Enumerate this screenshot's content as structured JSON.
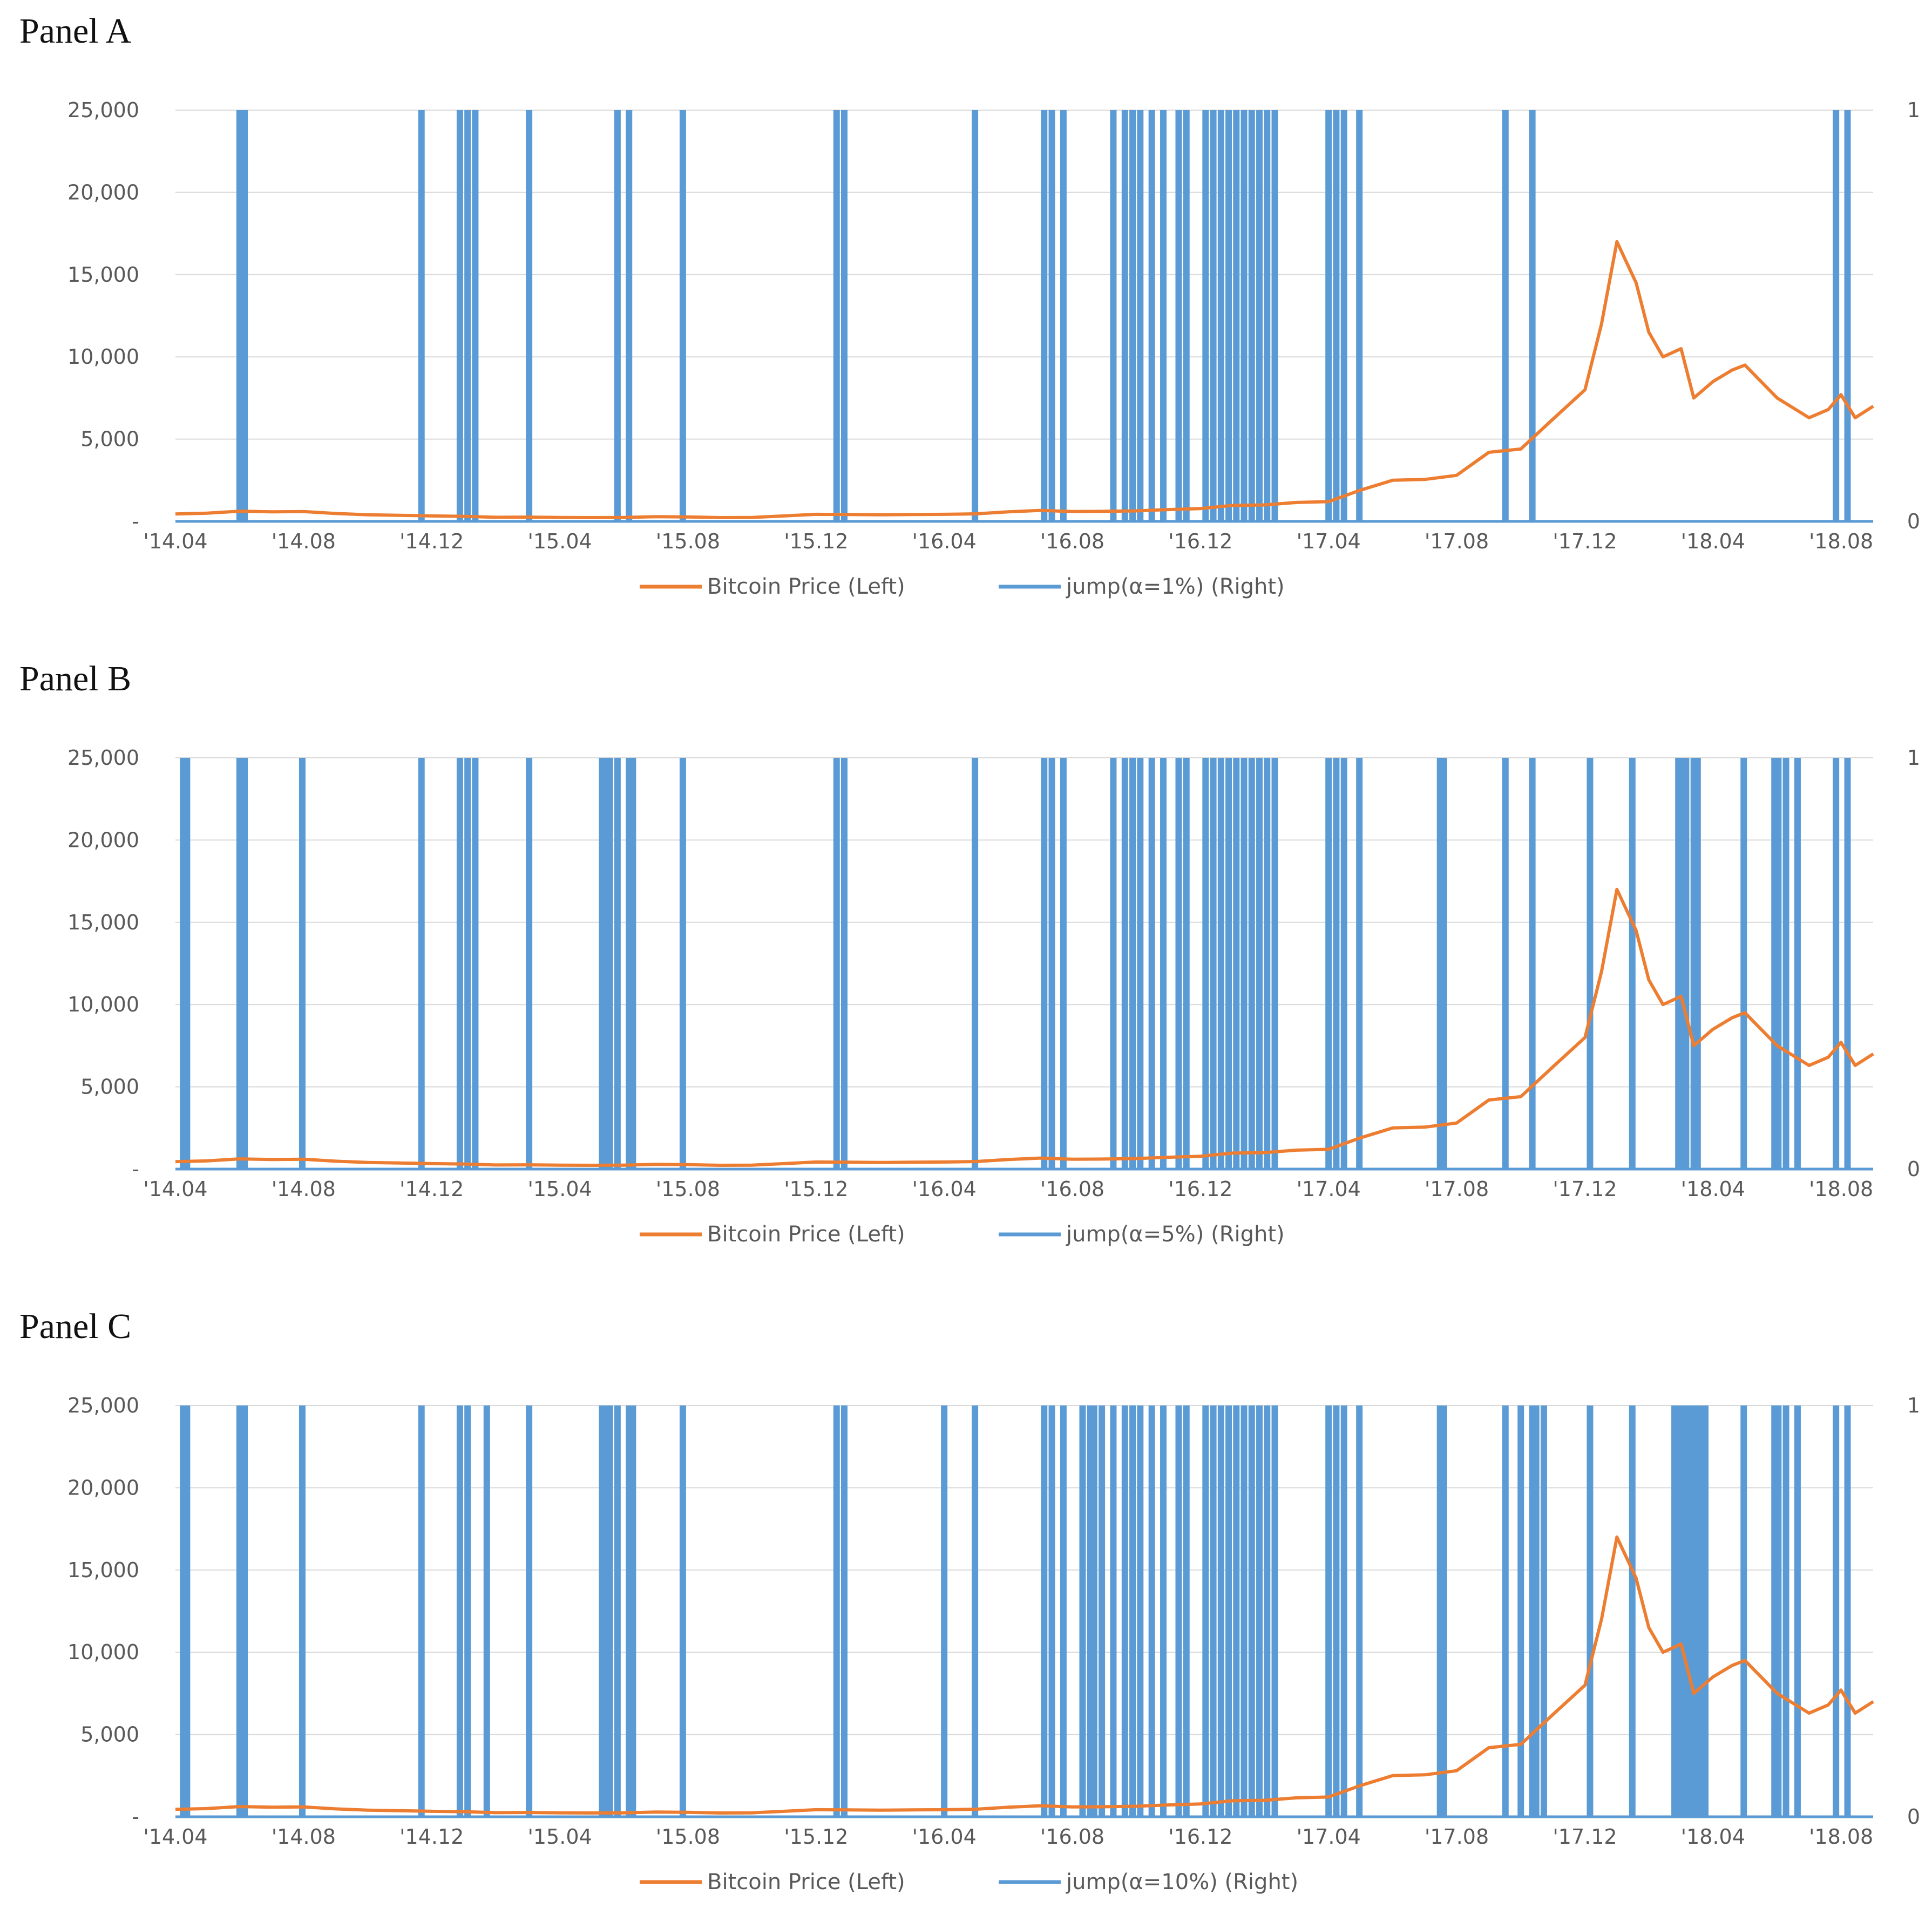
{
  "colors": {
    "price": "#ED7D31",
    "jump": "#5B9BD5",
    "grid": "#D9D9D9",
    "text": "#595959"
  },
  "chart_data": [
    {
      "panel_title": "Panel A",
      "type": "line",
      "xlim": [
        2014.25,
        2018.6667
      ],
      "x_ticks": [
        {
          "label": "'14.04",
          "value": 2014.25
        },
        {
          "label": "'14.08",
          "value": 2014.5833
        },
        {
          "label": "'14.12",
          "value": 2014.9167
        },
        {
          "label": "'15.04",
          "value": 2015.25
        },
        {
          "label": "'15.08",
          "value": 2015.5833
        },
        {
          "label": "'15.12",
          "value": 2015.9167
        },
        {
          "label": "'16.04",
          "value": 2016.25
        },
        {
          "label": "'16.08",
          "value": 2016.5833
        },
        {
          "label": "'16.12",
          "value": 2016.9167
        },
        {
          "label": "'17.04",
          "value": 2017.25
        },
        {
          "label": "'17.08",
          "value": 2017.5833
        },
        {
          "label": "'17.12",
          "value": 2017.9167
        },
        {
          "label": "'18.04",
          "value": 2018.25
        },
        {
          "label": "'18.08",
          "value": 2018.5833
        }
      ],
      "y_left_ticks": [
        {
          "label": "-",
          "value": 0
        },
        {
          "label": "5,000",
          "value": 5000
        },
        {
          "label": "10,000",
          "value": 10000
        },
        {
          "label": "15,000",
          "value": 15000
        },
        {
          "label": "20,000",
          "value": 20000
        },
        {
          "label": "25,000",
          "value": 25000
        }
      ],
      "y_right_ticks": [
        {
          "label": "0",
          "value": 0
        },
        {
          "label": "1",
          "value": 1
        }
      ],
      "ylim_left": [
        0,
        25000
      ],
      "ylim_right": [
        0,
        1
      ],
      "series": [
        {
          "name": "Bitcoin Price (Left)",
          "axis": "left",
          "x": [
            2014.25,
            2014.333,
            2014.417,
            2014.5,
            2014.583,
            2014.667,
            2014.75,
            2014.833,
            2014.917,
            2015.0,
            2015.083,
            2015.167,
            2015.25,
            2015.333,
            2015.417,
            2015.5,
            2015.583,
            2015.667,
            2015.75,
            2015.833,
            2015.917,
            2016.0,
            2016.083,
            2016.167,
            2016.25,
            2016.333,
            2016.417,
            2016.5,
            2016.583,
            2016.667,
            2016.75,
            2016.833,
            2016.917,
            2017.0,
            2017.083,
            2017.167,
            2017.25,
            2017.333,
            2017.417,
            2017.5,
            2017.583,
            2017.667,
            2017.75,
            2017.833,
            2017.917,
            2017.96,
            2018.0,
            2018.05,
            2018.083,
            2018.12,
            2018.167,
            2018.2,
            2018.25,
            2018.3,
            2018.333,
            2018.417,
            2018.5,
            2018.55,
            2018.583,
            2018.62,
            2018.667
          ],
          "y": [
            450,
            500,
            620,
            580,
            600,
            480,
            400,
            370,
            330,
            310,
            250,
            260,
            240,
            230,
            240,
            290,
            270,
            230,
            240,
            330,
            430,
            420,
            400,
            420,
            430,
            460,
            580,
            670,
            600,
            610,
            640,
            720,
            780,
            970,
            1000,
            1150,
            1200,
            1900,
            2500,
            2550,
            2800,
            4200,
            4400,
            6200,
            8000,
            12000,
            17000,
            14500,
            11500,
            10000,
            10500,
            7500,
            8500,
            9200,
            9500,
            7500,
            6300,
            6800,
            7700,
            6300,
            7000
          ]
        },
        {
          "name": "jump(α=1%) (Right)",
          "axis": "right",
          "jumps": [
            2014.417,
            2014.43,
            2014.89,
            2014.99,
            2015.01,
            2015.03,
            2015.17,
            2015.4,
            2015.43,
            2015.57,
            2015.97,
            2015.99,
            2016.33,
            2016.51,
            2016.53,
            2016.56,
            2016.69,
            2016.72,
            2016.74,
            2016.76,
            2016.79,
            2016.82,
            2016.86,
            2016.88,
            2016.93,
            2016.95,
            2016.97,
            2016.99,
            2017.01,
            2017.03,
            2017.05,
            2017.07,
            2017.09,
            2017.11,
            2017.25,
            2017.27,
            2017.29,
            2017.33,
            2017.71,
            2017.78,
            2018.57,
            2018.6
          ]
        }
      ],
      "legend": [
        "Bitcoin Price (Left)",
        "jump(α=1%) (Right)"
      ]
    },
    {
      "panel_title": "Panel B",
      "type": "line",
      "xlim": [
        2014.25,
        2018.6667
      ],
      "x_ticks": [
        {
          "label": "'14.04",
          "value": 2014.25
        },
        {
          "label": "'14.08",
          "value": 2014.5833
        },
        {
          "label": "'14.12",
          "value": 2014.9167
        },
        {
          "label": "'15.04",
          "value": 2015.25
        },
        {
          "label": "'15.08",
          "value": 2015.5833
        },
        {
          "label": "'15.12",
          "value": 2015.9167
        },
        {
          "label": "'16.04",
          "value": 2016.25
        },
        {
          "label": "'16.08",
          "value": 2016.5833
        },
        {
          "label": "'16.12",
          "value": 2016.9167
        },
        {
          "label": "'17.04",
          "value": 2017.25
        },
        {
          "label": "'17.08",
          "value": 2017.5833
        },
        {
          "label": "'17.12",
          "value": 2017.9167
        },
        {
          "label": "'18.04",
          "value": 2018.25
        },
        {
          "label": "'18.08",
          "value": 2018.5833
        }
      ],
      "y_left_ticks": [
        {
          "label": "-",
          "value": 0
        },
        {
          "label": "5,000",
          "value": 5000
        },
        {
          "label": "10,000",
          "value": 10000
        },
        {
          "label": "15,000",
          "value": 15000
        },
        {
          "label": "20,000",
          "value": 20000
        },
        {
          "label": "25,000",
          "value": 25000
        }
      ],
      "y_right_ticks": [
        {
          "label": "0",
          "value": 0
        },
        {
          "label": "1",
          "value": 1
        }
      ],
      "ylim_left": [
        0,
        25000
      ],
      "ylim_right": [
        0,
        1
      ],
      "series": [
        {
          "name": "Bitcoin Price (Left)",
          "axis": "left",
          "x": [
            2014.25,
            2014.333,
            2014.417,
            2014.5,
            2014.583,
            2014.667,
            2014.75,
            2014.833,
            2014.917,
            2015.0,
            2015.083,
            2015.167,
            2015.25,
            2015.333,
            2015.417,
            2015.5,
            2015.583,
            2015.667,
            2015.75,
            2015.833,
            2015.917,
            2016.0,
            2016.083,
            2016.167,
            2016.25,
            2016.333,
            2016.417,
            2016.5,
            2016.583,
            2016.667,
            2016.75,
            2016.833,
            2016.917,
            2017.0,
            2017.083,
            2017.167,
            2017.25,
            2017.333,
            2017.417,
            2017.5,
            2017.583,
            2017.667,
            2017.75,
            2017.833,
            2017.917,
            2017.96,
            2018.0,
            2018.05,
            2018.083,
            2018.12,
            2018.167,
            2018.2,
            2018.25,
            2018.3,
            2018.333,
            2018.417,
            2018.5,
            2018.55,
            2018.583,
            2018.62,
            2018.667
          ],
          "y": [
            450,
            500,
            620,
            580,
            600,
            480,
            400,
            370,
            330,
            310,
            250,
            260,
            240,
            230,
            240,
            290,
            270,
            230,
            240,
            330,
            430,
            420,
            400,
            420,
            430,
            460,
            580,
            670,
            600,
            610,
            640,
            720,
            780,
            970,
            1000,
            1150,
            1200,
            1900,
            2500,
            2550,
            2800,
            4200,
            4400,
            6200,
            8000,
            12000,
            17000,
            14500,
            11500,
            10000,
            10500,
            7500,
            8500,
            9200,
            9500,
            7500,
            6300,
            6800,
            7700,
            6300,
            7000
          ]
        },
        {
          "name": "jump(α=5%) (Right)",
          "axis": "right",
          "jumps": [
            2014.27,
            2014.28,
            2014.417,
            2014.43,
            2014.58,
            2014.89,
            2014.99,
            2015.01,
            2015.03,
            2015.17,
            2015.36,
            2015.37,
            2015.38,
            2015.4,
            2015.43,
            2015.44,
            2015.57,
            2015.97,
            2015.99,
            2016.33,
            2016.51,
            2016.53,
            2016.56,
            2016.69,
            2016.72,
            2016.74,
            2016.76,
            2016.79,
            2016.82,
            2016.86,
            2016.88,
            2016.93,
            2016.95,
            2016.97,
            2016.99,
            2017.01,
            2017.03,
            2017.05,
            2017.07,
            2017.09,
            2017.11,
            2017.25,
            2017.27,
            2017.29,
            2017.33,
            2017.54,
            2017.55,
            2017.71,
            2017.78,
            2017.93,
            2018.04,
            2018.16,
            2018.17,
            2018.18,
            2018.2,
            2018.21,
            2018.33,
            2018.41,
            2018.42,
            2018.44,
            2018.47,
            2018.57,
            2018.6
          ]
        }
      ],
      "legend": [
        "Bitcoin Price (Left)",
        "jump(α=5%) (Right)"
      ]
    },
    {
      "panel_title": "Panel C",
      "type": "line",
      "xlim": [
        2014.25,
        2018.6667
      ],
      "x_ticks": [
        {
          "label": "'14.04",
          "value": 2014.25
        },
        {
          "label": "'14.08",
          "value": 2014.5833
        },
        {
          "label": "'14.12",
          "value": 2014.9167
        },
        {
          "label": "'15.04",
          "value": 2015.25
        },
        {
          "label": "'15.08",
          "value": 2015.5833
        },
        {
          "label": "'15.12",
          "value": 2015.9167
        },
        {
          "label": "'16.04",
          "value": 2016.25
        },
        {
          "label": "'16.08",
          "value": 2016.5833
        },
        {
          "label": "'16.12",
          "value": 2016.9167
        },
        {
          "label": "'17.04",
          "value": 2017.25
        },
        {
          "label": "'17.08",
          "value": 2017.5833
        },
        {
          "label": "'17.12",
          "value": 2017.9167
        },
        {
          "label": "'18.04",
          "value": 2018.25
        },
        {
          "label": "'18.08",
          "value": 2018.5833
        }
      ],
      "y_left_ticks": [
        {
          "label": "-",
          "value": 0
        },
        {
          "label": "5,000",
          "value": 5000
        },
        {
          "label": "10,000",
          "value": 10000
        },
        {
          "label": "15,000",
          "value": 15000
        },
        {
          "label": "20,000",
          "value": 20000
        },
        {
          "label": "25,000",
          "value": 25000
        }
      ],
      "y_right_ticks": [
        {
          "label": "0",
          "value": 0
        },
        {
          "label": "1",
          "value": 1
        }
      ],
      "ylim_left": [
        0,
        25000
      ],
      "ylim_right": [
        0,
        1
      ],
      "series": [
        {
          "name": "Bitcoin Price (Left)",
          "axis": "left",
          "x": [
            2014.25,
            2014.333,
            2014.417,
            2014.5,
            2014.583,
            2014.667,
            2014.75,
            2014.833,
            2014.917,
            2015.0,
            2015.083,
            2015.167,
            2015.25,
            2015.333,
            2015.417,
            2015.5,
            2015.583,
            2015.667,
            2015.75,
            2015.833,
            2015.917,
            2016.0,
            2016.083,
            2016.167,
            2016.25,
            2016.333,
            2016.417,
            2016.5,
            2016.583,
            2016.667,
            2016.75,
            2016.833,
            2016.917,
            2017.0,
            2017.083,
            2017.167,
            2017.25,
            2017.333,
            2017.417,
            2017.5,
            2017.583,
            2017.667,
            2017.75,
            2017.833,
            2017.917,
            2017.96,
            2018.0,
            2018.05,
            2018.083,
            2018.12,
            2018.167,
            2018.2,
            2018.25,
            2018.3,
            2018.333,
            2018.417,
            2018.5,
            2018.55,
            2018.583,
            2018.62,
            2018.667
          ],
          "y": [
            450,
            500,
            620,
            580,
            600,
            480,
            400,
            370,
            330,
            310,
            250,
            260,
            240,
            230,
            240,
            290,
            270,
            230,
            240,
            330,
            430,
            420,
            400,
            420,
            430,
            460,
            580,
            670,
            600,
            610,
            640,
            720,
            780,
            970,
            1000,
            1150,
            1200,
            1900,
            2500,
            2550,
            2800,
            4200,
            4400,
            6200,
            8000,
            12000,
            17000,
            14500,
            11500,
            10000,
            10500,
            7500,
            8500,
            9200,
            9500,
            7500,
            6300,
            6800,
            7700,
            6300,
            7000
          ]
        },
        {
          "name": "jump(α=10%) (Right)",
          "axis": "right",
          "jumps": [
            2014.27,
            2014.28,
            2014.417,
            2014.43,
            2014.58,
            2014.89,
            2014.99,
            2015.01,
            2015.06,
            2015.17,
            2015.36,
            2015.37,
            2015.38,
            2015.4,
            2015.43,
            2015.44,
            2015.57,
            2015.97,
            2015.99,
            2016.25,
            2016.33,
            2016.51,
            2016.53,
            2016.56,
            2016.61,
            2016.63,
            2016.64,
            2016.66,
            2016.69,
            2016.72,
            2016.74,
            2016.76,
            2016.79,
            2016.82,
            2016.86,
            2016.88,
            2016.93,
            2016.95,
            2016.97,
            2016.99,
            2017.01,
            2017.03,
            2017.05,
            2017.07,
            2017.09,
            2017.11,
            2017.25,
            2017.27,
            2017.29,
            2017.33,
            2017.54,
            2017.55,
            2017.71,
            2017.75,
            2017.78,
            2017.79,
            2017.81,
            2017.93,
            2018.04,
            2018.15,
            2018.16,
            2018.17,
            2018.18,
            2018.19,
            2018.2,
            2018.21,
            2018.22,
            2018.23,
            2018.33,
            2018.41,
            2018.42,
            2018.44,
            2018.47,
            2018.57,
            2018.6
          ]
        }
      ],
      "legend": [
        "Bitcoin Price (Left)",
        "jump(α=10%) (Right)"
      ]
    }
  ]
}
